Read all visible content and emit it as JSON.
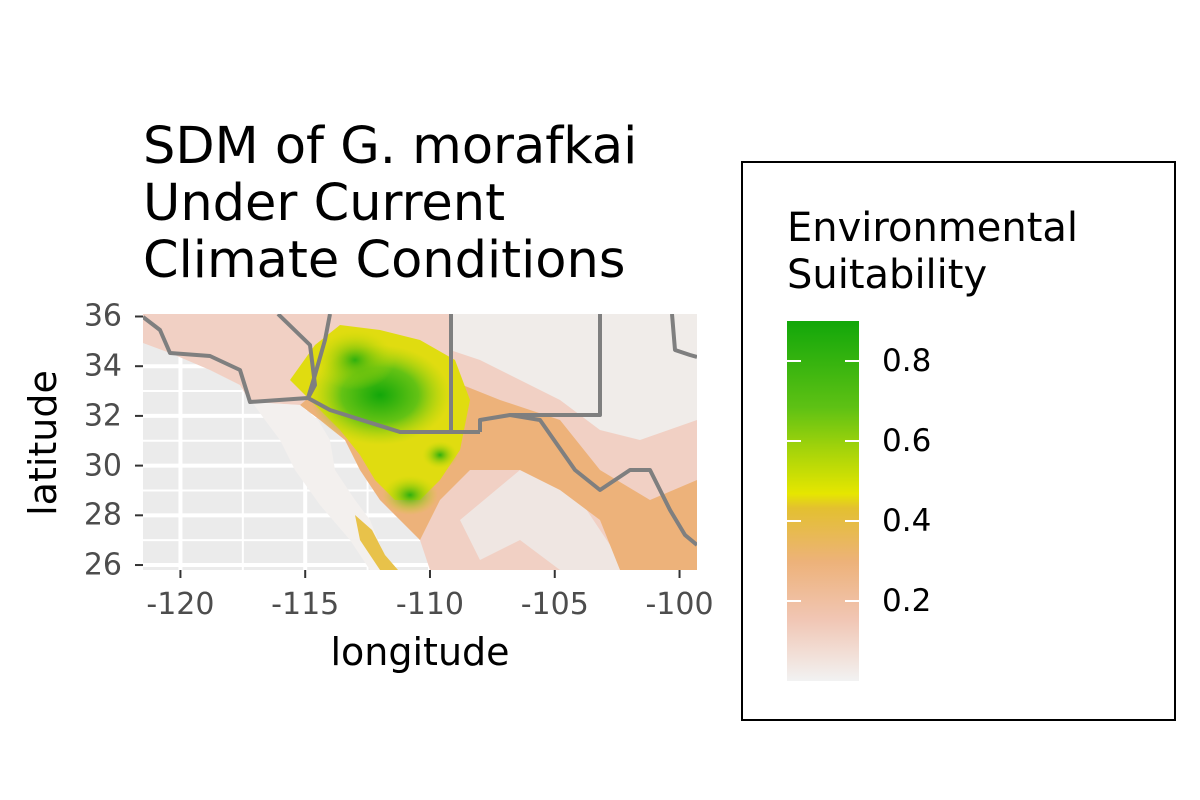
{
  "title": {
    "lines": [
      "SDM of G. morafkai",
      "Under Current",
      "Climate Conditions"
    ]
  },
  "axes": {
    "xlabel": "longitude",
    "ylabel": "latitude",
    "x_ticks": [
      "-120",
      "-115",
      "-110",
      "-105",
      "-100"
    ],
    "y_ticks": [
      "36",
      "34",
      "32",
      "30",
      "28",
      "26"
    ],
    "xlim": [
      -121.5,
      -99.3
    ],
    "ylim": [
      25.8,
      36.1
    ]
  },
  "legend": {
    "title_lines": [
      "Environmental",
      "Suitability"
    ],
    "ticks": [
      "0.8",
      "0.6",
      "0.4",
      "0.2"
    ],
    "placement": "right"
  },
  "colors": {
    "panel_background": "#ebebeb",
    "grid": "#ffffff",
    "boundary": "#7f7f7f",
    "low": "#f2f2f2",
    "mid_low": "#edb27a",
    "mid": "#e6e600",
    "high": "#12a70a"
  },
  "chart_data": {
    "type": "heatmap",
    "title": "SDM of G. morafkai Under Current Climate Conditions",
    "xlabel": "longitude",
    "ylabel": "latitude",
    "xlim": [
      -121.5,
      -99.3
    ],
    "ylim": [
      25.8,
      36.1
    ],
    "x_ticks": [
      -120,
      -115,
      -110,
      -105,
      -100
    ],
    "y_ticks": [
      26,
      28,
      30,
      32,
      34,
      36
    ],
    "colorbar": {
      "title": "Environmental Suitability",
      "ticks": [
        0.2,
        0.4,
        0.6,
        0.8
      ],
      "range": [
        0,
        0.9
      ]
    },
    "grid": true,
    "legend": "right"
  }
}
